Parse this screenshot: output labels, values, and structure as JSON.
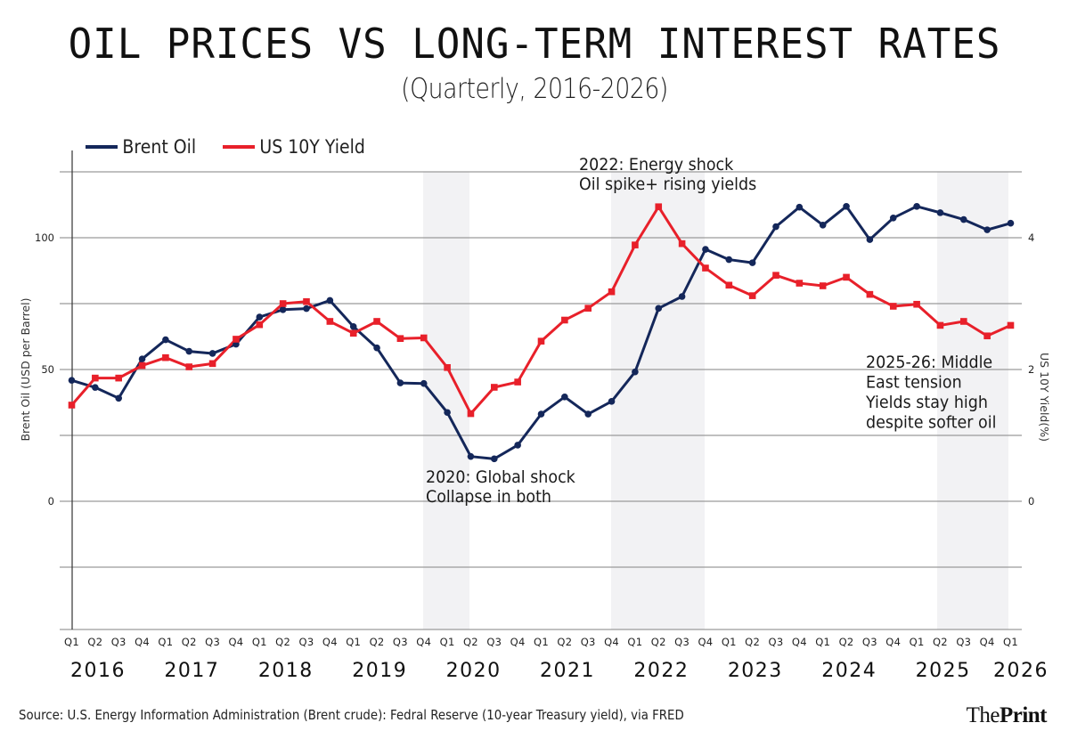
{
  "header": {
    "title": "OIL PRICES VS LONG-TERM INTEREST RATES",
    "subtitle": "(Quarterly, 2016-2026)"
  },
  "legend": [
    {
      "label": "Brent Oil",
      "color": "#14275a"
    },
    {
      "label": "US 10Y Yield",
      "color": "#e8202a"
    }
  ],
  "footer": {
    "source": "Source: U.S. Energy Information Administration (Brent crude): Fedral Reserve (10-year Treasury yield), via FRED",
    "logo_light": "The",
    "logo_bold": "Print"
  },
  "chart_data": {
    "type": "line",
    "title": "OIL PRICES VS LONG-TERM INTEREST RATES",
    "subtitle": "(Quarterly, 2016-2026)",
    "xlabel": "",
    "ylabel": "Brent Oil (USD per Barrel)",
    "y2label": "US 10Y Yield(%)",
    "ylim": [
      -48,
      125
    ],
    "y2lim": [
      -1.92,
      5
    ],
    "yticks": [
      0,
      50,
      100
    ],
    "y2ticks": [
      0,
      2,
      4
    ],
    "gridlines": [
      125,
      100,
      75,
      50,
      25,
      0,
      -25
    ],
    "grid": true,
    "legend_position": "top-left",
    "years": [
      "2016",
      "2017",
      "2018",
      "2019",
      "2020",
      "2021",
      "2022",
      "2023",
      "2024",
      "2025",
      "2026"
    ],
    "x": [
      "Q1",
      "Q2",
      "Q3",
      "Q4",
      "Q1",
      "Q2",
      "Q3",
      "Q4",
      "Q1",
      "Q2",
      "Q3",
      "Q4",
      "Q1",
      "Q2",
      "Q3",
      "Q4",
      "Q1",
      "Q2",
      "Q3",
      "Q4",
      "Q1",
      "Q2",
      "Q3",
      "Q4",
      "Q1",
      "Q2",
      "Q3",
      "Q4",
      "Q1",
      "Q2",
      "Q3",
      "Q4",
      "Q1",
      "Q2",
      "Q3",
      "Q4",
      "Q1",
      "Q2",
      "Q3",
      "Q4",
      "Q1"
    ],
    "series": [
      {
        "name": "Brent Oil",
        "axis": "left",
        "color": "#14275a",
        "marker": "circle",
        "values": [
          45.9,
          43.2,
          39.1,
          54.0,
          61.3,
          56.9,
          56.1,
          59.6,
          69.9,
          72.7,
          73.1,
          76.2,
          66.3,
          58.2,
          44.9,
          44.7,
          33.7,
          17.0,
          16.1,
          21.3,
          33.1,
          39.6,
          33.1,
          37.9,
          49.1,
          73.2,
          77.7,
          95.6,
          91.7,
          90.5,
          104.2,
          111.6,
          104.8,
          111.9,
          99.3,
          107.5,
          111.9,
          109.5,
          106.9,
          103.0,
          105.5
        ]
      },
      {
        "name": "US 10Y Yield",
        "axis": "right",
        "color": "#e8202a",
        "marker": "square",
        "values": [
          1.46,
          1.87,
          1.87,
          2.06,
          2.18,
          2.04,
          2.09,
          2.46,
          2.68,
          3.0,
          3.03,
          2.73,
          2.55,
          2.73,
          2.47,
          2.48,
          2.03,
          1.33,
          1.73,
          1.81,
          2.43,
          2.75,
          2.93,
          3.18,
          3.89,
          4.47,
          3.91,
          3.54,
          3.28,
          3.12,
          3.43,
          3.31,
          3.27,
          3.4,
          3.14,
          2.96,
          2.99,
          2.67,
          2.73,
          2.51,
          2.67
        ]
      }
    ],
    "shaded_periods": [
      {
        "from_index": 15,
        "to_index": 17,
        "label": "2020"
      },
      {
        "from_index": 23,
        "to_index": 27,
        "label": "2022"
      },
      {
        "from_index": 37,
        "to_index": 40,
        "label": "2025-26"
      }
    ],
    "annotations": [
      {
        "lines": [
          "2022: Energy shock",
          "Oil spike+ rising yields"
        ],
        "anchor": "2022 top"
      },
      {
        "lines": [
          "2020: Global shock",
          "Collapse in both"
        ],
        "anchor": "2020 trough"
      },
      {
        "lines": [
          "2025-26: Middle",
          "East tension",
          "Yields stay high",
          "despite softer oil"
        ],
        "anchor": "2025-26 right"
      }
    ]
  }
}
